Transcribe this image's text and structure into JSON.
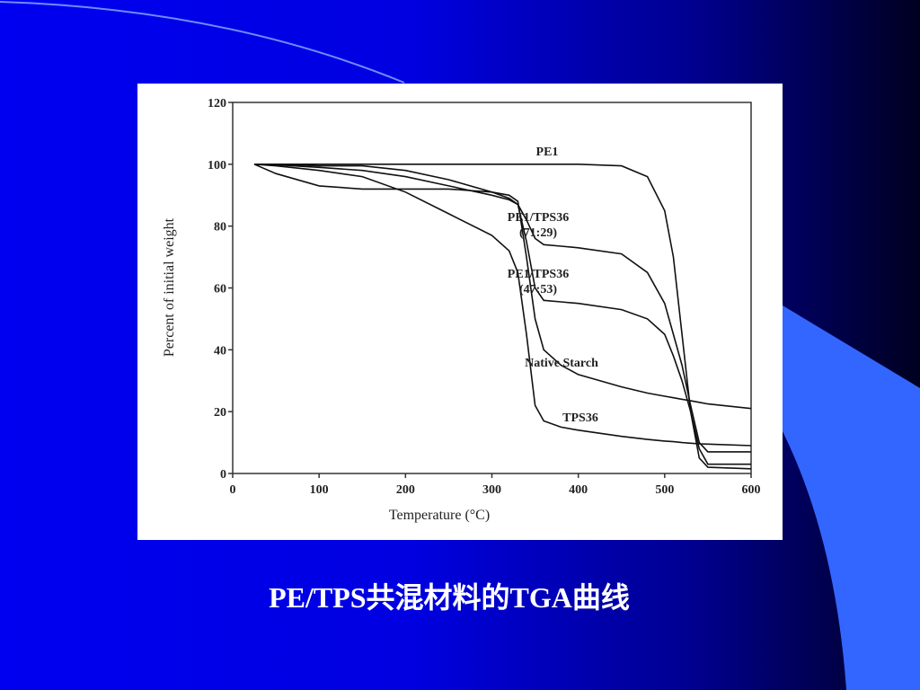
{
  "caption": "PE/TPS共混材料的TGA曲线",
  "chart_data": {
    "type": "line",
    "xlabel": "Temperature (°C)",
    "ylabel": "Percent of initial weight",
    "x": [
      25,
      50,
      100,
      150,
      200,
      250,
      300,
      320,
      330,
      340,
      350,
      360,
      380,
      400,
      450,
      480,
      500,
      510,
      520,
      530,
      540,
      550,
      600
    ],
    "xlim": [
      0,
      600
    ],
    "xticks": [
      0,
      100,
      200,
      300,
      400,
      500,
      600
    ],
    "ylim": [
      0,
      120
    ],
    "yticks": [
      0,
      20,
      40,
      60,
      80,
      100,
      120
    ],
    "series": [
      {
        "name": "PE1",
        "color": "#111111",
        "values": [
          100,
          100,
          100,
          100,
          100,
          100,
          100,
          100,
          100,
          100,
          100,
          100,
          100,
          100,
          99.5,
          96,
          85,
          70,
          45,
          20,
          5,
          2,
          1.5
        ]
      },
      {
        "name": "PE1/TPS36 (71:29)",
        "color": "#111111",
        "values": [
          100,
          100,
          99.5,
          99.5,
          98,
          95,
          91,
          89,
          87,
          82,
          76,
          74,
          73.5,
          73,
          71,
          65,
          55,
          45,
          35,
          22,
          10,
          7,
          7
        ]
      },
      {
        "name": "PE1/TPS36 (47:53)",
        "color": "#111111",
        "values": [
          100,
          99.8,
          99,
          98,
          96,
          93,
          90,
          88.5,
          87,
          75,
          60,
          56,
          55.5,
          55,
          53,
          50,
          45,
          38,
          30,
          20,
          8,
          3,
          3
        ]
      },
      {
        "name": "Native Starch",
        "color": "#111111",
        "values": [
          100,
          97,
          93,
          92,
          92,
          92,
          91,
          90,
          88,
          70,
          50,
          40,
          35,
          32,
          28,
          26,
          25,
          24.5,
          24,
          23.5,
          23,
          22.5,
          21
        ]
      },
      {
        "name": "TPS36",
        "color": "#111111",
        "values": [
          100,
          99.5,
          98,
          96,
          91,
          84,
          77,
          72,
          65,
          45,
          22,
          17,
          15,
          14,
          12,
          11,
          10.5,
          10.3,
          10,
          9.8,
          9.6,
          9.5,
          9
        ]
      }
    ]
  }
}
